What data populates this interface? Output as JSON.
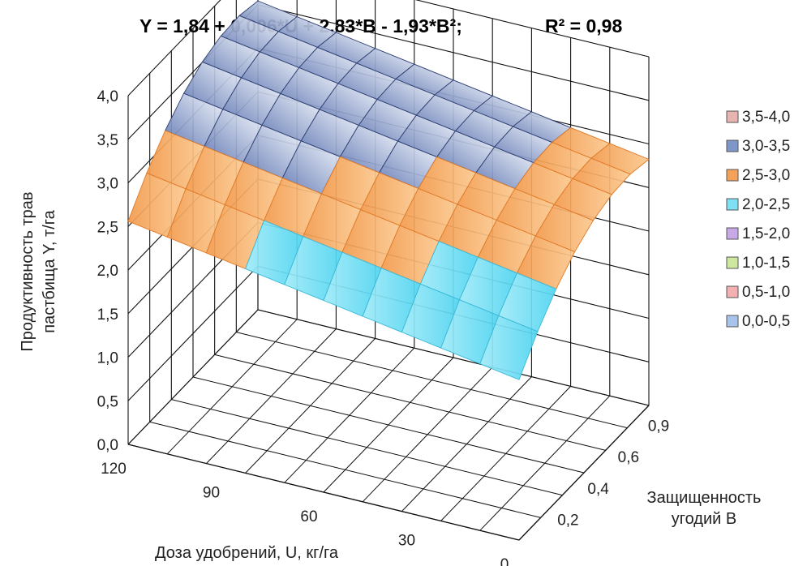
{
  "chart_data": {
    "type": "surface",
    "title": "Y = 1,84 + 0,006*U + 2,83*B - 1,93*B²;",
    "r2": "R² = 0,98",
    "ylabel_line1": "Продуктивность трав",
    "ylabel_line2": "пастбища Y, т/га",
    "xlabel": "Доза удобрений, U, кг/га",
    "zlabel_line1": "Защищенность",
    "zlabel_line2": "угодий В",
    "y_ticks": [
      "0,0",
      "0,5",
      "1,0",
      "1,5",
      "2,0",
      "2,5",
      "3,0",
      "3,5",
      "4,0"
    ],
    "u_ticks": [
      "120",
      "90",
      "60",
      "30",
      "0"
    ],
    "b_ticks": [
      "0,2",
      "0,4",
      "0,6",
      "0,9"
    ],
    "ylim": [
      0,
      4
    ],
    "u_range": [
      0,
      120
    ],
    "b_range": [
      0,
      0.9
    ],
    "formula": {
      "intercept": 1.84,
      "U": 0.006,
      "B": 2.83,
      "B2": -1.93
    },
    "legend": [
      {
        "label": "3,5-4,0",
        "color": "#e8b4b0"
      },
      {
        "label": "3,0-3,5",
        "color": "#7f96c8"
      },
      {
        "label": "2,5-3,0",
        "color": "#f4a25a"
      },
      {
        "label": "2,0-2,5",
        "color": "#7fe0f4"
      },
      {
        "label": "1,5-2,0",
        "color": "#c8a8e6"
      },
      {
        "label": "1,0-1,5",
        "color": "#cfe8a0"
      },
      {
        "label": "0,5-1,0",
        "color": "#f4b0b0"
      },
      {
        "label": "0,0-0,5",
        "color": "#a8c4ec"
      }
    ]
  }
}
